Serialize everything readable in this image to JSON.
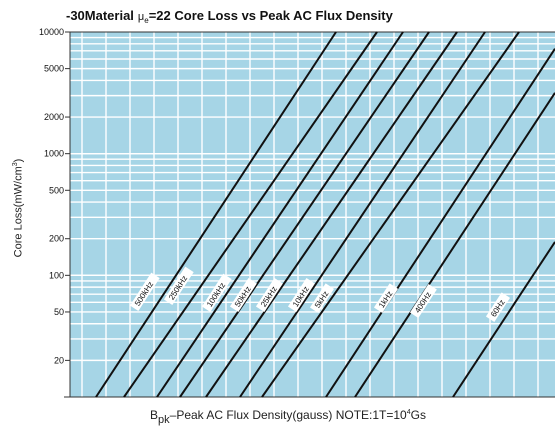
{
  "chart_data": {
    "type": "line",
    "title": {
      "prefix": "-30Material",
      "mu": "μ",
      "mu_sub": "e",
      "rest": "=22 Core Loss vs Peak AC Flux Density"
    },
    "xlabel": {
      "b": "B",
      "b_sub": "pk",
      "main": "–Peak AC Flux Density(gauss)  NOTE:1T=10",
      "sup": "4",
      "tail": "Gs"
    },
    "ylabel": {
      "main": "Core Loss(mW/cm",
      "sup": "3",
      "tail": ")"
    },
    "y_scale": "log",
    "ylim": [
      10,
      10000
    ],
    "y_ticks": [
      {
        "value": 20,
        "label": "20"
      },
      {
        "value": 50,
        "label": "50"
      },
      {
        "value": 100,
        "label": "100"
      },
      {
        "value": 200,
        "label": "200"
      },
      {
        "value": 500,
        "label": "500"
      },
      {
        "value": 1000,
        "label": "1000"
      },
      {
        "value": 2000,
        "label": "2000"
      },
      {
        "value": 5000,
        "label": "5000"
      },
      {
        "value": 10000,
        "label": "10000"
      }
    ],
    "grid": true,
    "series": [
      {
        "name": "500kHz"
      },
      {
        "name": "250kHz"
      },
      {
        "name": "100kHz"
      },
      {
        "name": "50kHz"
      },
      {
        "name": "25kHz"
      },
      {
        "name": "10kHz"
      },
      {
        "name": "5kHz"
      },
      {
        "name": "1kHz"
      },
      {
        "name": "400Hz"
      },
      {
        "name": "60Hz"
      }
    ],
    "colors": {
      "plot_background": "#a6d5e6",
      "grid": "#ffffff",
      "lines": "#111111",
      "label_background": "#ffffff"
    }
  }
}
